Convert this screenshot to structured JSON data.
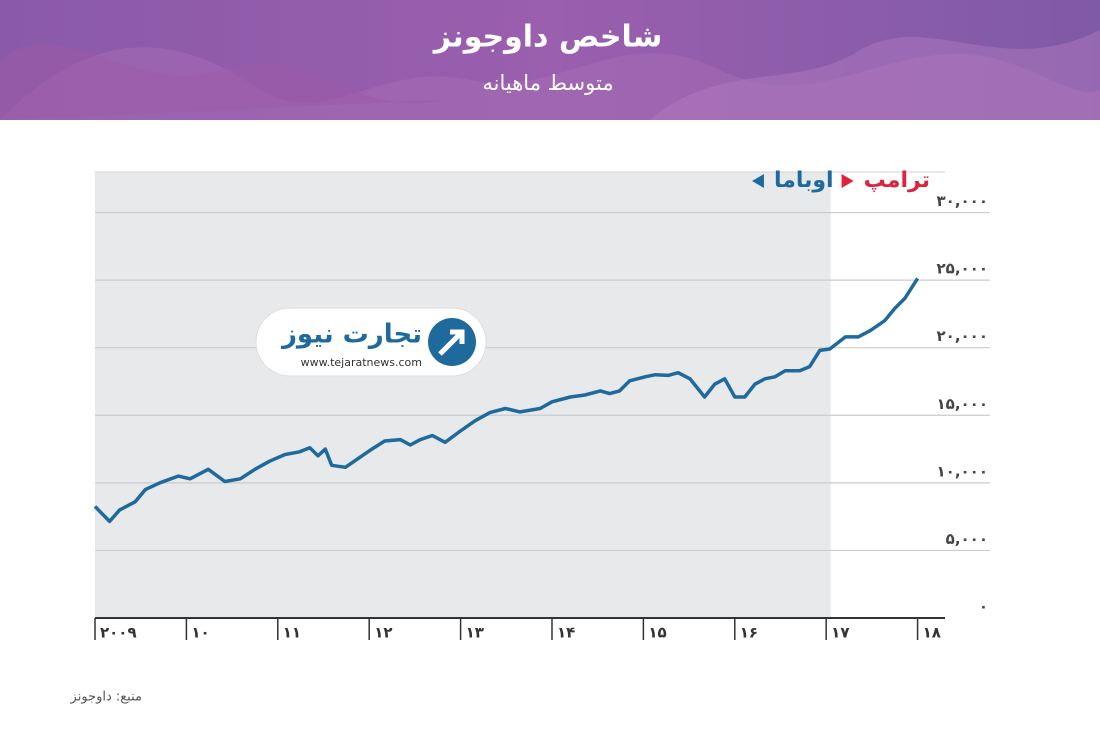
{
  "chart_data": {
    "type": "line",
    "title": "شاخص داوجونز",
    "subtitle": "متوسط ماهیانه",
    "source": "منبع: داوجونز",
    "logo": {
      "name": "تجارت نیوز",
      "url": "www.tejaratnews.com"
    },
    "x": [
      2009.0,
      2009.16,
      2009.27,
      2009.44,
      2009.55,
      2009.71,
      2009.91,
      2010.04,
      2010.24,
      2010.42,
      2010.59,
      2010.75,
      2010.91,
      2011.08,
      2011.24,
      2011.35,
      2011.44,
      2011.52,
      2011.59,
      2011.74,
      2011.9,
      2012.03,
      2012.17,
      2012.34,
      2012.45,
      2012.56,
      2012.69,
      2012.83,
      2012.99,
      2013.16,
      2013.32,
      2013.49,
      2013.65,
      2013.87,
      2014.0,
      2014.2,
      2014.36,
      2014.53,
      2014.63,
      2014.74,
      2014.85,
      2015.02,
      2015.13,
      2015.27,
      2015.38,
      2015.51,
      2015.67,
      2015.78,
      2015.89,
      2016.0,
      2016.11,
      2016.22,
      2016.33,
      2016.44,
      2016.55,
      2016.71,
      2016.82,
      2016.93,
      2017.04,
      2017.21,
      2017.35,
      2017.48,
      2017.64,
      2017.75,
      2017.86,
      2018.0
    ],
    "series": [
      {
        "name": "داوجونز",
        "color": "#1f6a9c",
        "values": [
          8250,
          7150,
          8000,
          8600,
          9500,
          10000,
          10500,
          10300,
          11000,
          10100,
          10300,
          11000,
          11600,
          12100,
          12300,
          12600,
          12000,
          12500,
          11300,
          11150,
          11900,
          12500,
          13100,
          13200,
          12800,
          13200,
          13500,
          13000,
          13800,
          14600,
          15200,
          15500,
          15250,
          15500,
          16000,
          16350,
          16500,
          16800,
          16600,
          16800,
          17550,
          17850,
          18000,
          17950,
          18150,
          17700,
          16350,
          17300,
          17700,
          16350,
          16350,
          17300,
          17700,
          17850,
          18300,
          18300,
          18600,
          19800,
          19900,
          20800,
          20800,
          21260,
          22000,
          22900,
          23650,
          25130
        ]
      }
    ],
    "regions": [
      {
        "name": "اوباما",
        "from": 2009,
        "to": 2017.05,
        "color": "#e8e9eb",
        "label_color": "#1f6a9c"
      },
      {
        "name": "ترامپ",
        "from": 2017.05,
        "to": 2018.3,
        "color": "#ffffff",
        "label_color": "#e0233c"
      }
    ],
    "xlim": [
      2009,
      2018.3
    ],
    "xticks": [
      {
        "value": 2009,
        "label": "۲۰۰۹"
      },
      {
        "value": 2010,
        "label": "۱۰"
      },
      {
        "value": 2011,
        "label": "۱۱"
      },
      {
        "value": 2012,
        "label": "۱۲"
      },
      {
        "value": 2013,
        "label": "۱۳"
      },
      {
        "value": 2014,
        "label": "۱۴"
      },
      {
        "value": 2015,
        "label": "۱۵"
      },
      {
        "value": 2016,
        "label": "۱۶"
      },
      {
        "value": 2017,
        "label": "۱۷"
      },
      {
        "value": 2018,
        "label": "۱۸"
      }
    ],
    "ylim": [
      0,
      33000
    ],
    "yticks": [
      {
        "value": 0,
        "label": "۰"
      },
      {
        "value": 5000,
        "label": "۵,۰۰۰"
      },
      {
        "value": 10000,
        "label": "۱۰,۰۰۰"
      },
      {
        "value": 15000,
        "label": "۱۵,۰۰۰"
      },
      {
        "value": 20000,
        "label": "۲۰,۰۰۰"
      },
      {
        "value": 25000,
        "label": "۲۵,۰۰۰"
      },
      {
        "value": 30000,
        "label": "۳۰,۰۰۰"
      }
    ],
    "grid": true
  }
}
